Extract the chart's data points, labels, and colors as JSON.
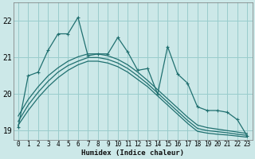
{
  "xlabel": "Humidex (Indice chaleur)",
  "background_color": "#cce8e8",
  "grid_color": "#99cccc",
  "line_color": "#207070",
  "xlim": [
    -0.5,
    23.5
  ],
  "ylim": [
    18.75,
    22.5
  ],
  "yticks": [
    19,
    20,
    21,
    22
  ],
  "xticks": [
    0,
    1,
    2,
    3,
    4,
    5,
    6,
    7,
    8,
    9,
    10,
    11,
    12,
    13,
    14,
    15,
    16,
    17,
    18,
    19,
    20,
    21,
    22,
    23
  ],
  "zigzag_x": [
    0,
    1,
    2,
    3,
    4,
    5,
    6,
    7,
    8,
    9,
    10,
    11,
    12,
    13,
    14,
    15,
    16,
    17,
    18,
    19,
    20,
    21,
    22,
    23
  ],
  "zigzag_y": [
    19.1,
    20.5,
    20.6,
    21.2,
    21.65,
    21.65,
    22.1,
    21.05,
    21.1,
    21.1,
    21.55,
    21.15,
    20.65,
    20.7,
    20.0,
    21.3,
    20.55,
    20.3,
    19.65,
    19.55,
    19.55,
    19.5,
    19.3,
    18.85
  ],
  "smooth_lines": [
    {
      "x": [
        0,
        1,
        2,
        3,
        4,
        5,
        6,
        7,
        8,
        9,
        10,
        11,
        12,
        13,
        14,
        15,
        16,
        17,
        18,
        19,
        20,
        21,
        22,
        23
      ],
      "y": [
        19.15,
        19.55,
        19.9,
        20.2,
        20.45,
        20.65,
        20.8,
        20.9,
        20.9,
        20.85,
        20.75,
        20.6,
        20.4,
        20.2,
        19.95,
        19.7,
        19.45,
        19.2,
        18.98,
        18.93,
        18.9,
        18.88,
        18.85,
        18.82
      ]
    },
    {
      "x": [
        0,
        1,
        2,
        3,
        4,
        5,
        6,
        7,
        8,
        9,
        10,
        11,
        12,
        13,
        14,
        15,
        16,
        17,
        18,
        19,
        20,
        21,
        22,
        23
      ],
      "y": [
        19.25,
        19.7,
        20.05,
        20.35,
        20.6,
        20.78,
        20.9,
        21.0,
        21.0,
        20.95,
        20.85,
        20.7,
        20.5,
        20.28,
        20.03,
        19.78,
        19.53,
        19.28,
        19.06,
        19.0,
        18.97,
        18.94,
        18.9,
        18.87
      ]
    },
    {
      "x": [
        0,
        1,
        2,
        3,
        4,
        5,
        6,
        7,
        8,
        9,
        10,
        11,
        12,
        13,
        14,
        15,
        16,
        17,
        18,
        19,
        20,
        21,
        22,
        23
      ],
      "y": [
        19.4,
        19.85,
        20.2,
        20.5,
        20.72,
        20.9,
        21.02,
        21.1,
        21.1,
        21.05,
        20.95,
        20.8,
        20.6,
        20.37,
        20.12,
        19.87,
        19.62,
        19.37,
        19.15,
        19.08,
        19.04,
        19.0,
        18.96,
        18.92
      ]
    }
  ]
}
